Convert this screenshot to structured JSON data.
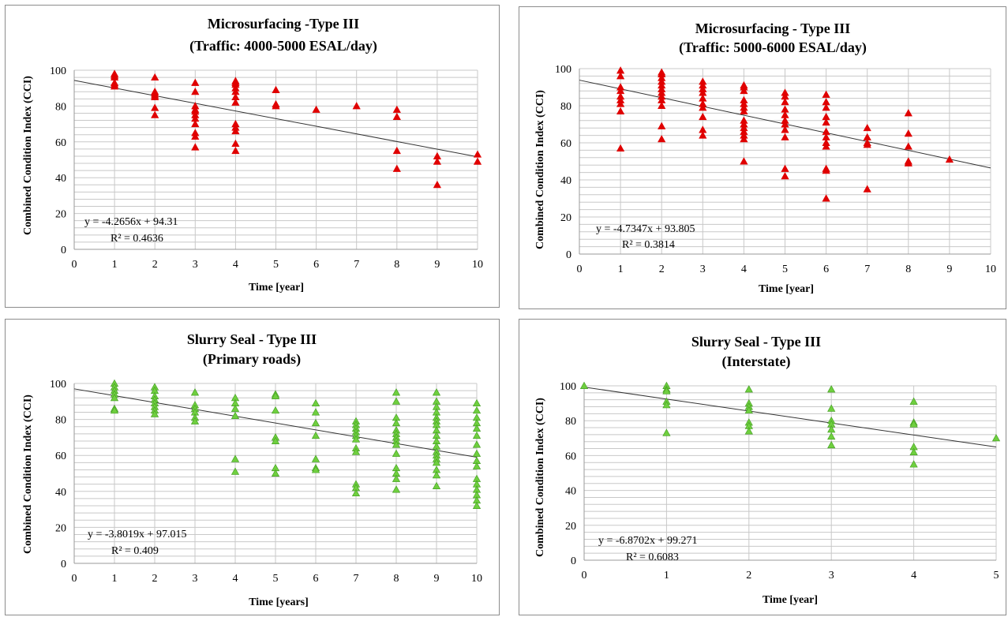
{
  "colors": {
    "red": "#e00000",
    "green": "#6fcf3f",
    "green_edge": "#3f9a1f",
    "grid": "#c8c8c8",
    "trend": "#333333"
  },
  "chart_data": [
    {
      "type": "scatter",
      "title": "Microsurfacing -Type III",
      "subtitle": "(Traffic: 4000-5000 ESAL/day)",
      "xlabel": "Time [year]",
      "ylabel": "Combined Condition Index (CCI)",
      "xlim": [
        0,
        10
      ],
      "ylim": [
        0,
        100
      ],
      "xticks": [
        "0",
        "1",
        "2",
        "3",
        "4",
        "5",
        "6",
        "7",
        "8",
        "9",
        "10"
      ],
      "yticks": [
        "0",
        "20",
        "40",
        "60",
        "80",
        "100"
      ],
      "marker": "triangle",
      "color": "red",
      "points": [
        [
          1,
          98
        ],
        [
          1,
          97
        ],
        [
          1,
          96
        ],
        [
          1,
          93
        ],
        [
          1,
          92
        ],
        [
          1,
          91
        ],
        [
          2,
          96
        ],
        [
          2,
          88
        ],
        [
          2,
          87
        ],
        [
          2,
          86
        ],
        [
          2,
          85
        ],
        [
          2,
          79
        ],
        [
          2,
          75
        ],
        [
          3,
          93
        ],
        [
          3,
          88
        ],
        [
          3,
          80
        ],
        [
          3,
          78
        ],
        [
          3,
          77
        ],
        [
          3,
          75
        ],
        [
          3,
          73
        ],
        [
          3,
          70
        ],
        [
          3,
          65
        ],
        [
          3,
          63
        ],
        [
          3,
          57
        ],
        [
          4,
          94
        ],
        [
          4,
          93
        ],
        [
          4,
          92
        ],
        [
          4,
          90
        ],
        [
          4,
          88
        ],
        [
          4,
          85
        ],
        [
          4,
          82
        ],
        [
          4,
          70
        ],
        [
          4,
          68
        ],
        [
          4,
          66
        ],
        [
          4,
          59
        ],
        [
          4,
          55
        ],
        [
          5,
          89
        ],
        [
          5,
          81
        ],
        [
          5,
          80
        ],
        [
          6,
          78
        ],
        [
          7,
          80
        ],
        [
          8,
          78
        ],
        [
          8,
          74
        ],
        [
          8,
          55
        ],
        [
          8,
          45
        ],
        [
          9,
          52
        ],
        [
          9,
          49
        ],
        [
          9,
          36
        ],
        [
          10,
          53
        ],
        [
          10,
          49
        ]
      ],
      "trend": {
        "slope": -4.2656,
        "intercept": 94.31
      },
      "equation": "y = -4.2656x + 94.31",
      "r2": "R² = 0.4636"
    },
    {
      "type": "scatter",
      "title": "Microsurfacing - Type III",
      "subtitle": "(Traffic: 5000-6000 ESAL/day)",
      "xlabel": "Time [year]",
      "ylabel": "Combined Condition Index (CCI)",
      "xlim": [
        0,
        10
      ],
      "ylim": [
        0,
        100
      ],
      "xticks": [
        "0",
        "1",
        "2",
        "3",
        "4",
        "5",
        "6",
        "7",
        "8",
        "9",
        "10"
      ],
      "yticks": [
        "0",
        "20",
        "40",
        "60",
        "80",
        "100"
      ],
      "marker": "triangle",
      "color": "red",
      "points": [
        [
          1,
          99
        ],
        [
          1,
          96
        ],
        [
          1,
          90
        ],
        [
          1,
          88
        ],
        [
          1,
          85
        ],
        [
          1,
          83
        ],
        [
          1,
          81
        ],
        [
          1,
          77
        ],
        [
          1,
          57
        ],
        [
          2,
          98
        ],
        [
          2,
          97
        ],
        [
          2,
          95
        ],
        [
          2,
          93
        ],
        [
          2,
          91
        ],
        [
          2,
          89
        ],
        [
          2,
          87
        ],
        [
          2,
          85
        ],
        [
          2,
          83
        ],
        [
          2,
          80
        ],
        [
          2,
          69
        ],
        [
          2,
          62
        ],
        [
          3,
          93
        ],
        [
          3,
          91
        ],
        [
          3,
          89
        ],
        [
          3,
          87
        ],
        [
          3,
          84
        ],
        [
          3,
          81
        ],
        [
          3,
          79
        ],
        [
          3,
          74
        ],
        [
          3,
          67
        ],
        [
          3,
          64
        ],
        [
          4,
          91
        ],
        [
          4,
          90
        ],
        [
          4,
          88
        ],
        [
          4,
          83
        ],
        [
          4,
          81
        ],
        [
          4,
          79
        ],
        [
          4,
          77
        ],
        [
          4,
          72
        ],
        [
          4,
          70
        ],
        [
          4,
          68
        ],
        [
          4,
          66
        ],
        [
          4,
          64
        ],
        [
          4,
          62
        ],
        [
          4,
          50
        ],
        [
          5,
          87
        ],
        [
          5,
          85
        ],
        [
          5,
          82
        ],
        [
          5,
          78
        ],
        [
          5,
          75
        ],
        [
          5,
          72
        ],
        [
          5,
          70
        ],
        [
          5,
          67
        ],
        [
          5,
          63
        ],
        [
          5,
          46
        ],
        [
          5,
          42
        ],
        [
          6,
          86
        ],
        [
          6,
          82
        ],
        [
          6,
          79
        ],
        [
          6,
          74
        ],
        [
          6,
          71
        ],
        [
          6,
          66
        ],
        [
          6,
          63
        ],
        [
          6,
          60
        ],
        [
          6,
          58
        ],
        [
          6,
          46
        ],
        [
          6,
          45
        ],
        [
          6,
          30
        ],
        [
          7,
          68
        ],
        [
          7,
          63
        ],
        [
          7,
          60
        ],
        [
          7,
          59
        ],
        [
          7,
          35
        ],
        [
          8,
          76
        ],
        [
          8,
          65
        ],
        [
          8,
          58
        ],
        [
          8,
          50
        ],
        [
          8,
          49
        ],
        [
          9,
          51
        ]
      ],
      "trend": {
        "slope": -4.7347,
        "intercept": 93.805
      },
      "equation": "y = -4.7347x + 93.805",
      "r2": "R² = 0.3814"
    },
    {
      "type": "scatter",
      "title": "Slurry Seal - Type III",
      "subtitle": "(Primary roads)",
      "xlabel": "Time [years]",
      "ylabel": "Combined Condition Index (CCI)",
      "xlim": [
        0,
        10
      ],
      "ylim": [
        0,
        100
      ],
      "xticks": [
        "0",
        "1",
        "2",
        "3",
        "4",
        "5",
        "6",
        "7",
        "8",
        "9",
        "10"
      ],
      "yticks": [
        "0",
        "20",
        "40",
        "60",
        "80",
        "100"
      ],
      "marker": "triangle",
      "color": "green",
      "points": [
        [
          1,
          100
        ],
        [
          1,
          98
        ],
        [
          1,
          96
        ],
        [
          1,
          94
        ],
        [
          1,
          92
        ],
        [
          1,
          86
        ],
        [
          1,
          85
        ],
        [
          2,
          98
        ],
        [
          2,
          96
        ],
        [
          2,
          93
        ],
        [
          2,
          91
        ],
        [
          2,
          89
        ],
        [
          2,
          87
        ],
        [
          2,
          85
        ],
        [
          2,
          83
        ],
        [
          3,
          95
        ],
        [
          3,
          88
        ],
        [
          3,
          86
        ],
        [
          3,
          84
        ],
        [
          3,
          81
        ],
        [
          3,
          79
        ],
        [
          4,
          92
        ],
        [
          4,
          89
        ],
        [
          4,
          86
        ],
        [
          4,
          82
        ],
        [
          4,
          58
        ],
        [
          4,
          51
        ],
        [
          5,
          94
        ],
        [
          5,
          93
        ],
        [
          5,
          85
        ],
        [
          5,
          70
        ],
        [
          5,
          68
        ],
        [
          5,
          53
        ],
        [
          5,
          50
        ],
        [
          6,
          89
        ],
        [
          6,
          84
        ],
        [
          6,
          78
        ],
        [
          6,
          71
        ],
        [
          6,
          58
        ],
        [
          6,
          53
        ],
        [
          6,
          52
        ],
        [
          7,
          79
        ],
        [
          7,
          77
        ],
        [
          7,
          75
        ],
        [
          7,
          73
        ],
        [
          7,
          71
        ],
        [
          7,
          69
        ],
        [
          7,
          64
        ],
        [
          7,
          62
        ],
        [
          7,
          44
        ],
        [
          7,
          42
        ],
        [
          7,
          39
        ],
        [
          8,
          95
        ],
        [
          8,
          90
        ],
        [
          8,
          81
        ],
        [
          8,
          78
        ],
        [
          8,
          74
        ],
        [
          8,
          72
        ],
        [
          8,
          70
        ],
        [
          8,
          68
        ],
        [
          8,
          66
        ],
        [
          8,
          61
        ],
        [
          8,
          53
        ],
        [
          8,
          50
        ],
        [
          8,
          47
        ],
        [
          8,
          41
        ],
        [
          9,
          95
        ],
        [
          9,
          90
        ],
        [
          9,
          87
        ],
        [
          9,
          84
        ],
        [
          9,
          81
        ],
        [
          9,
          79
        ],
        [
          9,
          77
        ],
        [
          9,
          74
        ],
        [
          9,
          71
        ],
        [
          9,
          68
        ],
        [
          9,
          65
        ],
        [
          9,
          62
        ],
        [
          9,
          60
        ],
        [
          9,
          58
        ],
        [
          9,
          56
        ],
        [
          9,
          52
        ],
        [
          9,
          49
        ],
        [
          9,
          43
        ],
        [
          10,
          89
        ],
        [
          10,
          85
        ],
        [
          10,
          81
        ],
        [
          10,
          78
        ],
        [
          10,
          75
        ],
        [
          10,
          71
        ],
        [
          10,
          66
        ],
        [
          10,
          61
        ],
        [
          10,
          57
        ],
        [
          10,
          54
        ],
        [
          10,
          47
        ],
        [
          10,
          44
        ],
        [
          10,
          41
        ],
        [
          10,
          38
        ],
        [
          10,
          35
        ],
        [
          10,
          32
        ]
      ],
      "trend": {
        "slope": -3.8019,
        "intercept": 97.015
      },
      "equation": "y = -3.8019x + 97.015",
      "r2": "R² = 0.409"
    },
    {
      "type": "scatter",
      "title": "Slurry Seal - Type III",
      "subtitle": "(Interstate)",
      "xlabel": "Time [year]",
      "ylabel": "Combined Condition Index (CCI)",
      "xlim": [
        0,
        5
      ],
      "ylim": [
        0,
        100
      ],
      "xticks": [
        "0",
        "1",
        "2",
        "3",
        "4",
        "5"
      ],
      "yticks": [
        "0",
        "20",
        "40",
        "60",
        "80",
        "100"
      ],
      "marker": "triangle",
      "color": "green",
      "points": [
        [
          0,
          100
        ],
        [
          1,
          100
        ],
        [
          1,
          98
        ],
        [
          1,
          97
        ],
        [
          1,
          91
        ],
        [
          1,
          89
        ],
        [
          1,
          73
        ],
        [
          2,
          98
        ],
        [
          2,
          90
        ],
        [
          2,
          88
        ],
        [
          2,
          86
        ],
        [
          2,
          79
        ],
        [
          2,
          77
        ],
        [
          2,
          74
        ],
        [
          3,
          98
        ],
        [
          3,
          87
        ],
        [
          3,
          80
        ],
        [
          3,
          78
        ],
        [
          3,
          75
        ],
        [
          3,
          71
        ],
        [
          3,
          66
        ],
        [
          4,
          91
        ],
        [
          4,
          79
        ],
        [
          4,
          78
        ],
        [
          4,
          65
        ],
        [
          4,
          62
        ],
        [
          4,
          55
        ],
        [
          5,
          70
        ]
      ],
      "trend": {
        "slope": -6.8702,
        "intercept": 99.271
      },
      "equation": "y = -6.8702x + 99.271",
      "r2": "R² = 0.6083"
    }
  ]
}
